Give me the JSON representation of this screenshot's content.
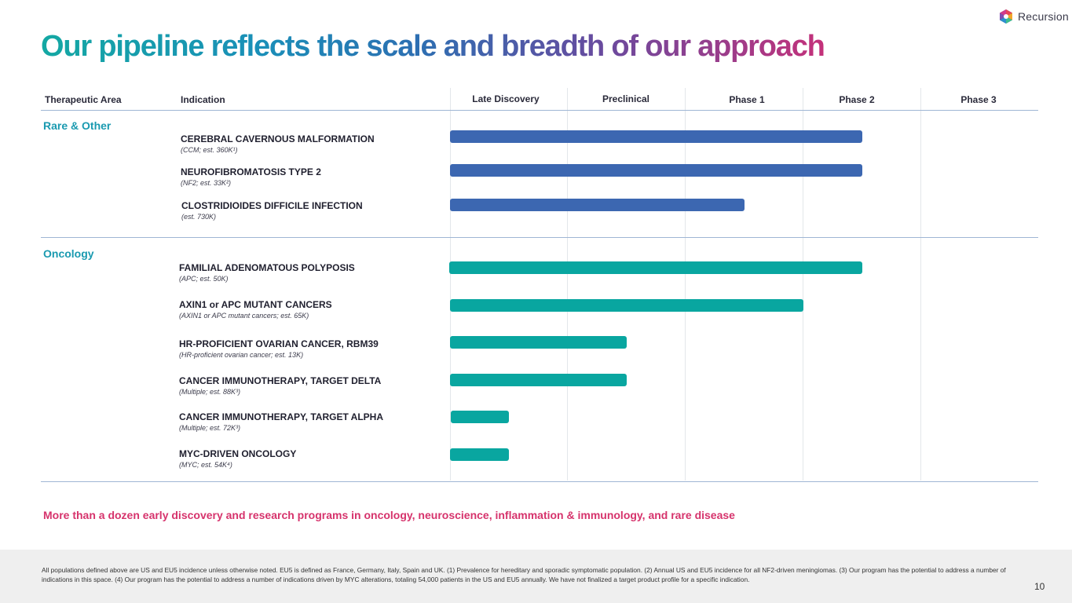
{
  "brand": {
    "name": "Recursion"
  },
  "title": {
    "part1": "Our pipeline reflects the scale and breadth of our approach"
  },
  "headers": {
    "therapeutic_area": "Therapeutic Area",
    "indication": "Indication",
    "phases": [
      "Late Discovery",
      "Preclinical",
      "Phase 1",
      "Phase 2",
      "Phase 3"
    ]
  },
  "sections": {
    "rare": "Rare & Other",
    "oncology": "Oncology"
  },
  "programs": [
    {
      "name": "CEREBRAL CAVERNOUS MALFORMATION",
      "sub": "(CCM; est. 360K¹)",
      "area": "rare",
      "progress_phase": 3.5
    },
    {
      "name": "NEUROFIBROMATOSIS TYPE 2",
      "sub": "(NF2; est. 33K²)",
      "area": "rare",
      "progress_phase": 3.5
    },
    {
      "name": "CLOSTRIDIOIDES DIFFICILE INFECTION",
      "sub": "(est. 730K)",
      "area": "rare",
      "progress_phase": 2.5
    },
    {
      "name": "FAMILIAL ADENOMATOUS POLYPOSIS",
      "sub": "(APC; est. 50K)",
      "area": "oncology",
      "progress_phase": 3.5
    },
    {
      "name": "AXIN1 or APC MUTANT CANCERS",
      "sub": "(AXIN1 or APC mutant cancers; est. 65K)",
      "area": "oncology",
      "progress_phase": 3.0
    },
    {
      "name": "HR-PROFICIENT OVARIAN CANCER, RBM39",
      "sub": "(HR-proficient ovarian cancer; est. 13K)",
      "area": "oncology",
      "progress_phase": 1.5
    },
    {
      "name": "CANCER IMMUNOTHERAPY, TARGET DELTA",
      "sub": "(Multiple; est. 88K³)",
      "area": "oncology",
      "progress_phase": 1.5
    },
    {
      "name": "CANCER IMMUNOTHERAPY, TARGET ALPHA",
      "sub": "(Multiple; est. 72K³)",
      "area": "oncology",
      "progress_phase": 0.5
    },
    {
      "name": "MYC-DRIVEN ONCOLOGY",
      "sub": "(MYC; est. 54K⁴)",
      "area": "oncology",
      "progress_phase": 0.5
    }
  ],
  "callout": "More than a dozen early discovery and research programs in oncology, neuroscience, inflammation & immunology, and rare disease",
  "footnote": "All populations defined above are US and EU5 incidence unless otherwise noted. EU5 is defined as France, Germany, Italy, Spain and UK. (1) Prevalence for hereditary and sporadic symptomatic population. (2) Annual US and EU5 incidence for all NF2-driven meningiomas. (3) Our program has the potential to address a number of indications in this space. (4) Our program has the potential to address a number of indications driven by MYC alterations, totaling 54,000 patients in the US and EU5 annually. We have not finalized a target product profile for a specific indication.",
  "page_number": "10",
  "colors": {
    "rare_bar": "#3c67b1",
    "oncology_bar": "#09a6a0",
    "section_label": "#1a9ab0",
    "callout": "#d6336c"
  }
}
